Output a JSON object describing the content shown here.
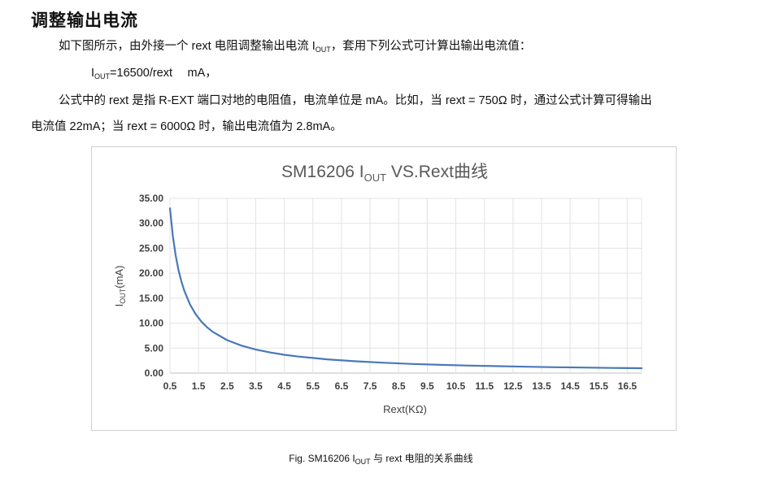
{
  "heading": "调整输出电流",
  "para1": {
    "before": "如下图所示，由外接一个 rext 电阻调整输出电流 I",
    "sub": "OUT",
    "after": "，套用下列公式可计算出输出电流值："
  },
  "formula": {
    "prefix": "I",
    "sub": "OUT",
    "expr": "=16500/rext　 mA，"
  },
  "para2": {
    "line1": "公式中的 rext 是指 R-EXT 端口对地的电阻值，电流单位是 mA。比如，当 rext = 750Ω 时，通过公式计算可得输出",
    "line2": "电流值 22mA；当 rext = 6000Ω 时，输出电流值为 2.8mA。"
  },
  "caption": {
    "before": "Fig. SM16206 I",
    "sub": "OUT",
    "after": " 与 rext 电阻的关系曲线"
  },
  "chart_data": {
    "type": "line",
    "title": {
      "before": "SM16206 I",
      "sub": "OUT",
      "after": " VS.Rext曲线"
    },
    "xlabel": "Rext(KΩ)",
    "ylabel": {
      "before": "I",
      "sub": "OUT",
      "after": "(mA)"
    },
    "xlim": [
      0.5,
      17.0
    ],
    "ylim": [
      0,
      35
    ],
    "x_ticks": [
      0.5,
      1.5,
      2.5,
      3.5,
      4.5,
      5.5,
      6.5,
      7.5,
      8.5,
      9.5,
      10.5,
      11.5,
      12.5,
      13.5,
      14.5,
      15.5,
      16.5
    ],
    "x_tick_labels": [
      "0.5",
      "1.5",
      "2.5",
      "3.5",
      "4.5",
      "5.5",
      "6.5",
      "7.5",
      "8.5",
      "9.5",
      "10.5",
      "11.5",
      "12.5",
      "13.5",
      "14.5",
      "15.5",
      "16.5"
    ],
    "y_ticks": [
      0,
      5,
      10,
      15,
      20,
      25,
      30,
      35
    ],
    "y_tick_labels": [
      "0.00",
      "5.00",
      "10.00",
      "15.00",
      "20.00",
      "25.00",
      "30.00",
      "35.00"
    ],
    "grid": true,
    "series": [
      {
        "color": "#4a78b8",
        "x": [
          0.5,
          0.6,
          0.7,
          0.8,
          0.9,
          1.0,
          1.2,
          1.4,
          1.6,
          1.8,
          2.0,
          2.5,
          3.0,
          3.5,
          4.0,
          4.5,
          5.0,
          6.0,
          7.0,
          8.0,
          9.0,
          10.0,
          11.0,
          12.0,
          13.0,
          14.0,
          15.0,
          16.0,
          17.0
        ],
        "y": [
          33.0,
          27.5,
          23.57,
          20.63,
          18.33,
          16.5,
          13.75,
          11.79,
          10.31,
          9.17,
          8.25,
          6.6,
          5.5,
          4.71,
          4.13,
          3.67,
          3.3,
          2.75,
          2.36,
          2.06,
          1.83,
          1.65,
          1.5,
          1.38,
          1.27,
          1.18,
          1.1,
          1.03,
          0.97
        ]
      }
    ]
  }
}
